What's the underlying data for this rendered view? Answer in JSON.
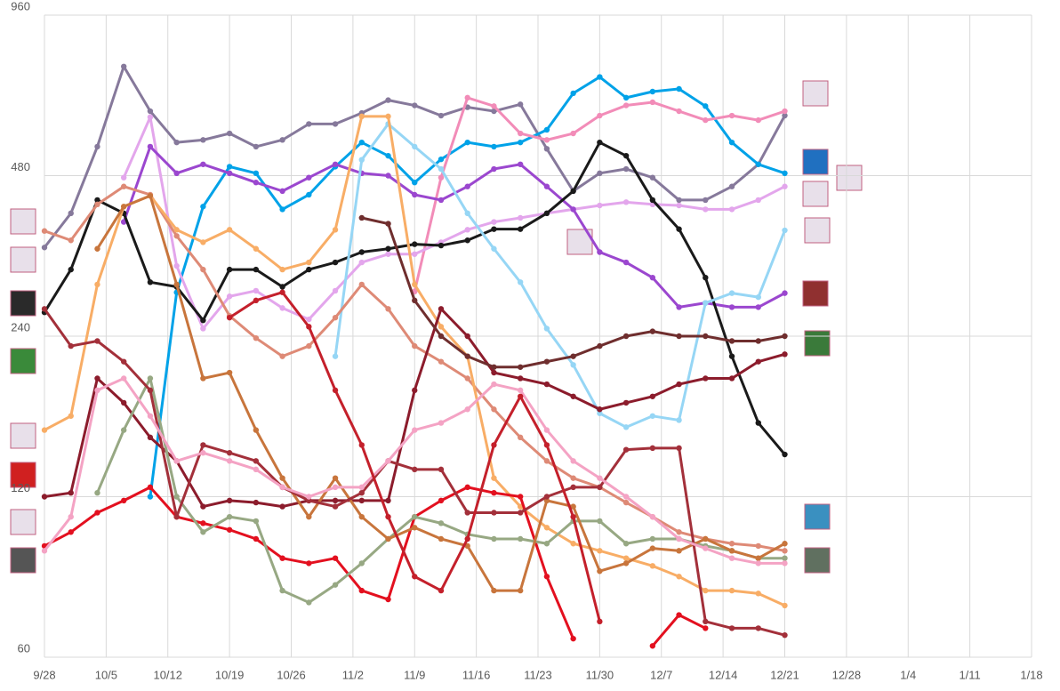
{
  "chart_data": {
    "type": "line",
    "log_scale": true,
    "grid": true,
    "x": [
      0,
      3,
      6,
      9,
      12,
      15,
      18,
      21,
      24,
      27,
      30,
      33,
      36,
      39,
      42,
      45,
      48,
      51,
      54,
      57,
      60,
      63,
      66,
      69,
      72,
      75,
      78,
      81,
      84
    ],
    "xlim": [
      0,
      112
    ],
    "xticks": [
      {
        "value": 0,
        "label": "9/28"
      },
      {
        "value": 7,
        "label": "10/5"
      },
      {
        "value": 14,
        "label": "10/12"
      },
      {
        "value": 21,
        "label": "10/19"
      },
      {
        "value": 28,
        "label": "10/26"
      },
      {
        "value": 35,
        "label": "11/2"
      },
      {
        "value": 42,
        "label": "11/9"
      },
      {
        "value": 49,
        "label": "11/16"
      },
      {
        "value": 56,
        "label": "11/23"
      },
      {
        "value": 63,
        "label": "11/30"
      },
      {
        "value": 70,
        "label": "12/7"
      },
      {
        "value": 77,
        "label": "12/14"
      },
      {
        "value": 84,
        "label": "12/21"
      },
      {
        "value": 91,
        "label": "12/28"
      },
      {
        "value": 98,
        "label": "1/4"
      },
      {
        "value": 105,
        "label": "1/11"
      },
      {
        "value": 112,
        "label": "1/18"
      }
    ],
    "ylim": [
      60,
      960
    ],
    "yticks": [
      60,
      120,
      240,
      480,
      960
    ],
    "series": [
      {
        "color": "#86799b",
        "values": [
          352,
          408,
          544,
          769,
          634,
          554,
          560,
          576,
          544,
          560,
          600,
          600,
          629,
          665,
          650,
          622,
          645,
          634,
          653,
          539,
          449,
          485,
          494,
          476,
          432,
          432,
          458,
          504,
          622
        ]
      },
      {
        "color": "#00a2e8",
        "values": [
          null,
          null,
          null,
          null,
          120,
          290,
          420,
          499,
          485,
          415,
          442,
          499,
          554,
          523,
          466,
          515,
          554,
          544,
          554,
          585,
          685,
          735,
          672,
          690,
          698,
          648,
          554,
          504,
          485
        ]
      },
      {
        "color": "#f28cb8",
        "values": [
          null,
          null,
          null,
          null,
          null,
          null,
          null,
          null,
          null,
          null,
          null,
          null,
          null,
          null,
          291,
          476,
          672,
          648,
          576,
          560,
          576,
          622,
          650,
          659,
          634,
          610,
          622,
          610,
          634
        ]
      },
      {
        "color": "#e3a6ec",
        "values": [
          null,
          null,
          null,
          476,
          618,
          325,
          248,
          285,
          292,
          271,
          258,
          292,
          330,
          342,
          342,
          360,
          380,
          393,
          400,
          408,
          415,
          422,
          428,
          424,
          422,
          415,
          415,
          432,
          458
        ]
      },
      {
        "color": "#9b47cf",
        "values": [
          null,
          null,
          null,
          393,
          544,
          485,
          504,
          485,
          466,
          449,
          476,
          504,
          485,
          480,
          442,
          432,
          458,
          494,
          504,
          458,
          415,
          345,
          330,
          309,
          272,
          277,
          272,
          272,
          289
        ]
      },
      {
        "color": "#1a1a1a",
        "values": [
          266,
          320,
          432,
          408,
          303,
          297,
          257,
          320,
          320,
          297,
          320,
          330,
          345,
          350,
          357,
          355,
          363,
          381,
          381,
          408,
          449,
          554,
          523,
          432,
          381,
          309,
          220,
          165,
          144
        ]
      },
      {
        "color": "#96d6f5",
        "values": [
          null,
          null,
          null,
          null,
          null,
          null,
          null,
          null,
          null,
          null,
          null,
          220,
          514,
          600,
          544,
          494,
          408,
          350,
          303,
          248,
          212,
          172,
          162,
          170,
          167,
          277,
          289,
          284,
          379
        ]
      },
      {
        "color": "#de8a76",
        "values": [
          378,
          363,
          424,
          458,
          442,
          370,
          320,
          262,
          238,
          220,
          230,
          260,
          300,
          270,
          230,
          215,
          200,
          175,
          155,
          140,
          130,
          125,
          117,
          110,
          103,
          100,
          98,
          97,
          95
        ]
      },
      {
        "color": "#f8ad66",
        "values": [
          160,
          170,
          300,
          420,
          440,
          380,
          360,
          380,
          350,
          320,
          330,
          380,
          620,
          620,
          300,
          250,
          220,
          130,
          115,
          105,
          98,
          95,
          92,
          89,
          85,
          80,
          80,
          79,
          75
        ]
      },
      {
        "color": "#8c1c2c",
        "values": [
          120,
          122,
          200,
          180,
          155,
          140,
          115,
          118,
          117,
          115,
          118,
          118,
          118,
          118,
          190,
          270,
          240,
          205,
          200,
          195,
          185,
          175,
          180,
          185,
          195,
          200,
          200,
          215,
          222
        ]
      },
      {
        "color": "#e3101f",
        "values": [
          97,
          103,
          112,
          118,
          125,
          110,
          107,
          104,
          100,
          92,
          90,
          92,
          80,
          77,
          110,
          118,
          125,
          122,
          120,
          85,
          65,
          null,
          null,
          63,
          72,
          68,
          null,
          null,
          null
        ]
      },
      {
        "color": "#97a883",
        "values": [
          null,
          null,
          122,
          160,
          200,
          120,
          103,
          110,
          108,
          80,
          76,
          82,
          90,
          100,
          110,
          107,
          102,
          100,
          100,
          98,
          108,
          108,
          98,
          100,
          100,
          97,
          95,
          92,
          92
        ]
      },
      {
        "color": "#c8753c",
        "values": [
          null,
          null,
          350,
          420,
          440,
          300,
          200,
          205,
          160,
          130,
          110,
          130,
          110,
          100,
          105,
          100,
          97,
          80,
          80,
          118,
          115,
          87,
          90,
          96,
          95,
          100,
          95,
          92,
          98
        ]
      },
      {
        "color": "#6f2e2e",
        "values": [
          null,
          null,
          null,
          null,
          null,
          null,
          null,
          null,
          null,
          null,
          null,
          null,
          400,
          390,
          280,
          240,
          220,
          210,
          210,
          215,
          220,
          230,
          240,
          245,
          240,
          240,
          235,
          235,
          240
        ]
      },
      {
        "color": "#a3303a",
        "values": [
          270,
          230,
          235,
          215,
          190,
          110,
          150,
          145,
          140,
          125,
          118,
          115,
          122,
          140,
          135,
          135,
          112,
          112,
          112,
          120,
          125,
          125,
          147,
          148,
          148,
          70,
          68,
          68,
          66
        ]
      },
      {
        "color": "#f4a3c4",
        "values": [
          95,
          110,
          190,
          200,
          170,
          140,
          145,
          140,
          135,
          125,
          120,
          125,
          125,
          140,
          160,
          165,
          175,
          195,
          190,
          160,
          140,
          130,
          120,
          110,
          100,
          96,
          92,
          90,
          90
        ]
      },
      {
        "color": "#c4202b",
        "values": [
          null,
          null,
          null,
          null,
          null,
          null,
          null,
          260,
          280,
          290,
          250,
          190,
          150,
          110,
          85,
          80,
          100,
          150,
          185,
          150,
          110,
          70,
          null,
          null,
          null,
          null,
          null,
          null,
          null
        ]
      }
    ]
  }
}
